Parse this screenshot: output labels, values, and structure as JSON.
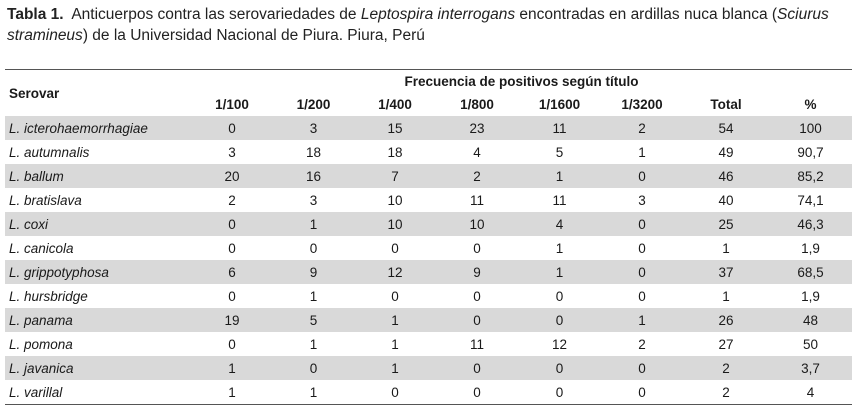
{
  "caption": {
    "label": "Tabla 1.",
    "text_1": "Anticuerpos contra las serovariedades de ",
    "italic_1": "Leptospira interrogans",
    "text_2": " encontradas en ardillas nuca blanca (",
    "italic_2": "Sciurus stramineus",
    "text_3": ") de la Universidad Nacional de Piura. Piura, Perú"
  },
  "table": {
    "serovar_header": "Serovar",
    "group_header": "Frecuencia de positivos según título",
    "columns": [
      "1/100",
      "1/200",
      "1/400",
      "1/800",
      "1/1600",
      "1/3200",
      "Total",
      "%"
    ],
    "rows": [
      {
        "genus": "L.",
        "species": "icterohaemorrhagiae",
        "values": [
          "0",
          "3",
          "15",
          "23",
          "11",
          "2",
          "54",
          "100"
        ]
      },
      {
        "genus": "L.",
        "species": "autumnalis",
        "values": [
          "3",
          "18",
          "18",
          "4",
          "5",
          "1",
          "49",
          "90,7"
        ]
      },
      {
        "genus": "L.",
        "species": "ballum",
        "values": [
          "20",
          "16",
          "7",
          "2",
          "1",
          "0",
          "46",
          "85,2"
        ]
      },
      {
        "genus": "L.",
        "species": "bratislava",
        "values": [
          "2",
          "3",
          "10",
          "11",
          "11",
          "3",
          "40",
          "74,1"
        ]
      },
      {
        "genus": "L.",
        "species": "coxi",
        "values": [
          "0",
          "1",
          "10",
          "10",
          "4",
          "0",
          "25",
          "46,3"
        ]
      },
      {
        "genus": "L.",
        "species": "canicola",
        "values": [
          "0",
          "0",
          "0",
          "0",
          "1",
          "0",
          "1",
          "1,9"
        ]
      },
      {
        "genus": "L.",
        "species": "grippotyphosa",
        "values": [
          "6",
          "9",
          "12",
          "9",
          "1",
          "0",
          "37",
          "68,5"
        ]
      },
      {
        "genus": "L.",
        "species": "hursbridge",
        "values": [
          "0",
          "1",
          "0",
          "0",
          "0",
          "0",
          "1",
          "1,9"
        ]
      },
      {
        "genus": "L.",
        "species": "panama",
        "values": [
          "19",
          "5",
          "1",
          "0",
          "0",
          "1",
          "26",
          "48"
        ]
      },
      {
        "genus": "L.",
        "species": "pomona",
        "values": [
          "0",
          "1",
          "1",
          "11",
          "12",
          "2",
          "27",
          "50"
        ]
      },
      {
        "genus": "L.",
        "species": "javanica",
        "values": [
          "1",
          "0",
          "1",
          "0",
          "0",
          "0",
          "2",
          "3,7"
        ]
      },
      {
        "genus": "L.",
        "species": "varillal",
        "values": [
          "1",
          "1",
          "0",
          "0",
          "0",
          "0",
          "2",
          "4"
        ]
      }
    ]
  },
  "colors": {
    "stripe": "#d9d9d9",
    "rule": "#555555"
  }
}
